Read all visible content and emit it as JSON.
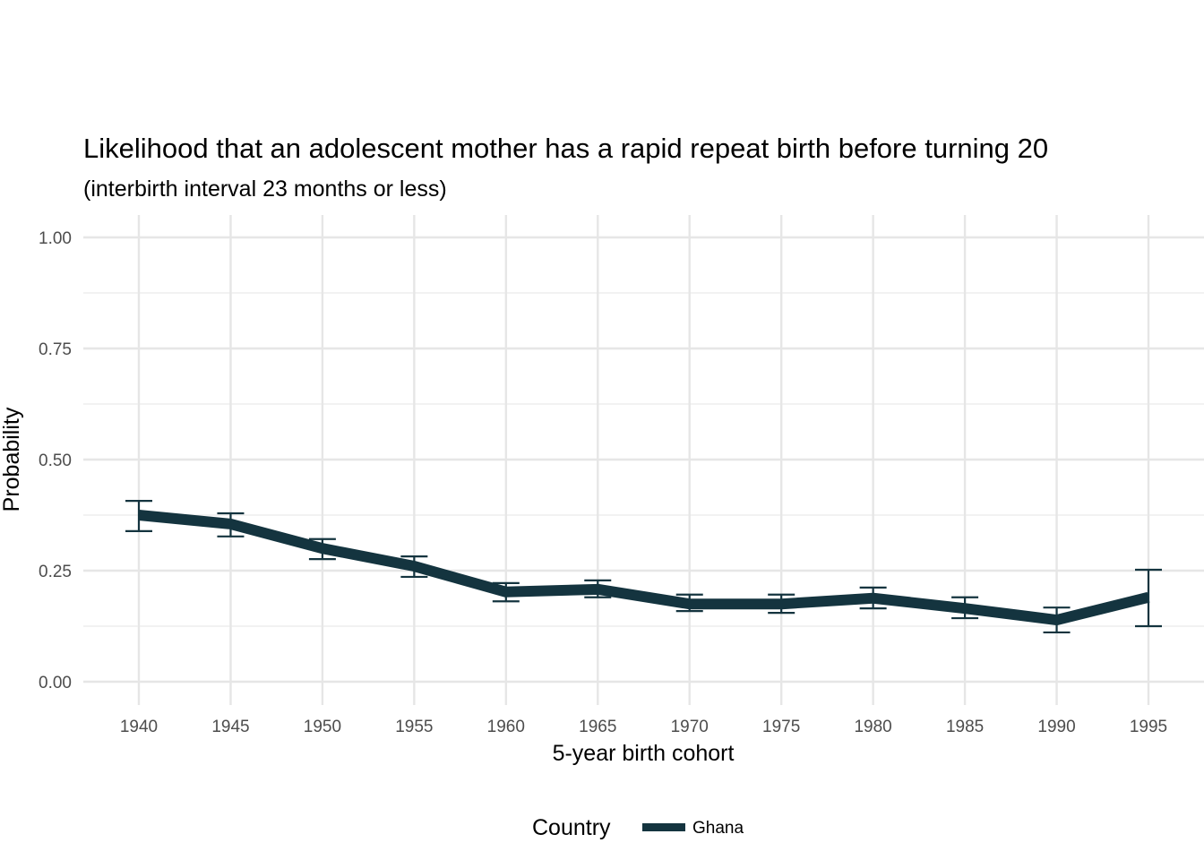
{
  "chart_data": {
    "type": "line",
    "title": "Likelihood that an adolescent mother has a rapid repeat birth before turning 20",
    "subtitle": "(interbirth interval 23 months or less)",
    "xlabel": "5-year birth cohort",
    "ylabel": "Probability",
    "xlim": [
      1937,
      1998
    ],
    "ylim": [
      0,
      1
    ],
    "x_ticks": [
      "1940",
      "1945",
      "1950",
      "1955",
      "1960",
      "1965",
      "1970",
      "1975",
      "1980",
      "1985",
      "1990",
      "1995"
    ],
    "y_ticks": [
      "0.00",
      "0.25",
      "0.50",
      "0.75",
      "1.00"
    ],
    "grid": true,
    "legend": {
      "title": "Country",
      "position": "bottom",
      "entries": [
        "Ghana"
      ]
    },
    "series": [
      {
        "name": "Ghana",
        "color": "#14343f",
        "x": [
          1940,
          1945,
          1950,
          1955,
          1960,
          1965,
          1970,
          1975,
          1980,
          1985,
          1990,
          1995
        ],
        "values": [
          0.375,
          0.355,
          0.3,
          0.26,
          0.202,
          0.208,
          0.175,
          0.175,
          0.188,
          0.165,
          0.139,
          0.19
        ],
        "lower": [
          0.339,
          0.327,
          0.276,
          0.236,
          0.181,
          0.19,
          0.159,
          0.155,
          0.165,
          0.143,
          0.111,
          0.125
        ],
        "upper": [
          0.407,
          0.379,
          0.321,
          0.282,
          0.222,
          0.228,
          0.196,
          0.196,
          0.212,
          0.19,
          0.167,
          0.252
        ]
      }
    ]
  }
}
